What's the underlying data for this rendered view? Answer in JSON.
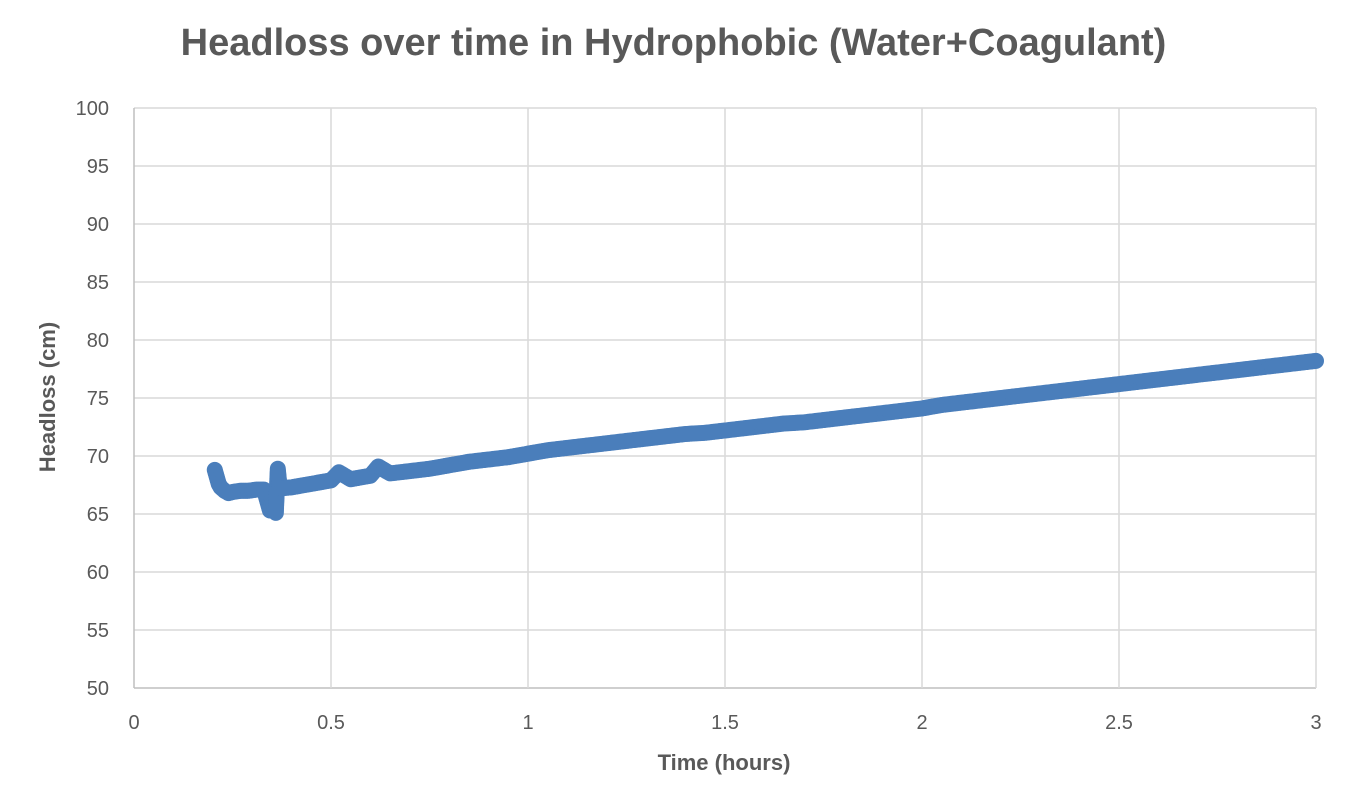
{
  "chart_data": {
    "type": "scatter",
    "title": "Headloss over time in Hydrophobic (Water+Coagulant)",
    "xlabel": "Time (hours)",
    "ylabel": "Headloss (cm)",
    "xlim": [
      0,
      3
    ],
    "ylim": [
      50,
      100
    ],
    "xticks": [
      "0",
      "0.5",
      "1",
      "1.5",
      "2",
      "2.5",
      "3"
    ],
    "yticks": [
      "50",
      "55",
      "60",
      "65",
      "70",
      "75",
      "80",
      "85",
      "90",
      "95",
      "100"
    ],
    "grid": true,
    "legend": "none",
    "series": [
      {
        "color": "#4a7ebb",
        "points": [
          [
            0.205,
            68.8
          ],
          [
            0.21,
            68.2
          ],
          [
            0.215,
            67.6
          ],
          [
            0.22,
            67.3
          ],
          [
            0.23,
            67.0
          ],
          [
            0.24,
            66.8
          ],
          [
            0.25,
            66.9
          ],
          [
            0.27,
            67.0
          ],
          [
            0.29,
            67.0
          ],
          [
            0.31,
            67.1
          ],
          [
            0.33,
            67.1
          ],
          [
            0.345,
            65.3
          ],
          [
            0.35,
            66.3
          ],
          [
            0.36,
            65.1
          ],
          [
            0.365,
            68.9
          ],
          [
            0.37,
            67.2
          ],
          [
            0.4,
            67.3
          ],
          [
            0.45,
            67.6
          ],
          [
            0.5,
            67.9
          ],
          [
            0.52,
            68.6
          ],
          [
            0.55,
            68.0
          ],
          [
            0.6,
            68.3
          ],
          [
            0.62,
            69.1
          ],
          [
            0.65,
            68.5
          ],
          [
            0.7,
            68.7
          ],
          [
            0.75,
            68.9
          ],
          [
            0.8,
            69.2
          ],
          [
            0.85,
            69.5
          ],
          [
            0.9,
            69.7
          ],
          [
            0.95,
            69.9
          ],
          [
            1.0,
            70.2
          ],
          [
            1.05,
            70.5
          ],
          [
            1.1,
            70.7
          ],
          [
            1.15,
            70.9
          ],
          [
            1.2,
            71.1
          ],
          [
            1.25,
            71.3
          ],
          [
            1.3,
            71.5
          ],
          [
            1.35,
            71.7
          ],
          [
            1.4,
            71.9
          ],
          [
            1.45,
            72.0
          ],
          [
            1.5,
            72.2
          ],
          [
            1.55,
            72.4
          ],
          [
            1.6,
            72.6
          ],
          [
            1.65,
            72.8
          ],
          [
            1.7,
            72.9
          ],
          [
            1.75,
            73.1
          ],
          [
            1.8,
            73.3
          ],
          [
            1.85,
            73.5
          ],
          [
            1.9,
            73.7
          ],
          [
            1.95,
            73.9
          ],
          [
            2.0,
            74.1
          ],
          [
            2.05,
            74.4
          ],
          [
            2.1,
            74.6
          ],
          [
            2.15,
            74.8
          ],
          [
            2.2,
            75.0
          ],
          [
            2.25,
            75.2
          ],
          [
            2.3,
            75.4
          ],
          [
            2.35,
            75.6
          ],
          [
            2.4,
            75.8
          ],
          [
            2.45,
            76.0
          ],
          [
            2.5,
            76.2
          ],
          [
            2.55,
            76.4
          ],
          [
            2.6,
            76.6
          ],
          [
            2.65,
            76.8
          ],
          [
            2.7,
            77.0
          ],
          [
            2.75,
            77.2
          ],
          [
            2.8,
            77.4
          ],
          [
            2.85,
            77.6
          ],
          [
            2.9,
            77.8
          ],
          [
            2.95,
            78.0
          ],
          [
            3.0,
            78.2
          ]
        ]
      }
    ]
  }
}
